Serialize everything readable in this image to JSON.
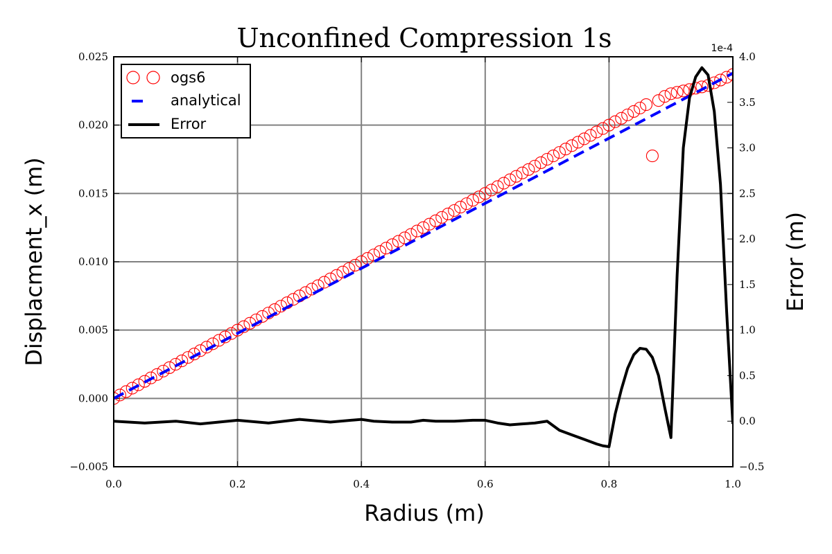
{
  "chart_data": {
    "type": "line",
    "title": "Unconfined Compression 1s",
    "xlabel": "Radius (m)",
    "ylabel": "Displacment_x (m)",
    "y2label": "Error (m)",
    "xlim": [
      0.0,
      1.0
    ],
    "ylim": [
      -0.005,
      0.025
    ],
    "y2lim": [
      -0.5,
      4.0
    ],
    "y2_offset_label": "1e-4",
    "x_ticks": [
      "0.0",
      "0.2",
      "0.4",
      "0.6",
      "0.8",
      "1.0"
    ],
    "y_ticks": [
      "−0.005",
      "0.000",
      "0.005",
      "0.010",
      "0.015",
      "0.020",
      "0.025"
    ],
    "y2_ticks": [
      "−0.5",
      "0.0",
      "0.5",
      "1.0",
      "1.5",
      "2.0",
      "2.5",
      "3.0",
      "3.5",
      "4.0"
    ],
    "grid": true,
    "legend": {
      "position": "top-left",
      "entries": [
        {
          "name": "ogs6",
          "style": "circle",
          "color": "#ff0000"
        },
        {
          "name": "analytical",
          "style": "dashed",
          "color": "#0000ff"
        },
        {
          "name": "Error",
          "style": "solid",
          "color": "#000000"
        }
      ]
    },
    "series": [
      {
        "name": "ogs6",
        "axis": "left",
        "marker": "circle",
        "color": "#ff0000",
        "x": [
          0.0,
          0.01,
          0.02,
          0.03,
          0.04,
          0.05,
          0.06,
          0.07,
          0.08,
          0.09,
          0.1,
          0.11,
          0.12,
          0.13,
          0.14,
          0.15,
          0.16,
          0.17,
          0.18,
          0.19,
          0.2,
          0.21,
          0.22,
          0.23,
          0.24,
          0.25,
          0.26,
          0.27,
          0.28,
          0.29,
          0.3,
          0.31,
          0.32,
          0.33,
          0.34,
          0.35,
          0.36,
          0.37,
          0.38,
          0.39,
          0.4,
          0.41,
          0.42,
          0.43,
          0.44,
          0.45,
          0.46,
          0.47,
          0.48,
          0.49,
          0.5,
          0.51,
          0.52,
          0.53,
          0.54,
          0.55,
          0.56,
          0.57,
          0.58,
          0.59,
          0.6,
          0.61,
          0.62,
          0.63,
          0.64,
          0.65,
          0.66,
          0.67,
          0.68,
          0.69,
          0.7,
          0.71,
          0.72,
          0.73,
          0.74,
          0.75,
          0.76,
          0.77,
          0.78,
          0.79,
          0.8,
          0.81,
          0.82,
          0.83,
          0.84,
          0.85,
          0.86,
          0.87,
          0.88,
          0.89,
          0.9,
          0.91,
          0.92,
          0.93,
          0.94,
          0.95,
          0.96,
          0.97,
          0.98,
          0.99,
          1.0
        ],
        "y": [
          0.0,
          0.00025,
          0.0005,
          0.00075,
          0.001,
          0.00125,
          0.0015,
          0.00175,
          0.002,
          0.00225,
          0.0025,
          0.00275,
          0.003,
          0.00325,
          0.0035,
          0.00375,
          0.004,
          0.00425,
          0.0045,
          0.00475,
          0.005,
          0.00525,
          0.0055,
          0.00575,
          0.006,
          0.00625,
          0.0065,
          0.00675,
          0.007,
          0.00725,
          0.0075,
          0.00775,
          0.008,
          0.00825,
          0.0085,
          0.00875,
          0.009,
          0.00925,
          0.0095,
          0.00975,
          0.01,
          0.01025,
          0.0105,
          0.01075,
          0.011,
          0.01125,
          0.0115,
          0.01175,
          0.012,
          0.01225,
          0.0125,
          0.01275,
          0.013,
          0.01325,
          0.0135,
          0.01375,
          0.014,
          0.01425,
          0.0145,
          0.01475,
          0.015,
          0.01525,
          0.0155,
          0.01575,
          0.016,
          0.01625,
          0.0165,
          0.01675,
          0.017,
          0.01725,
          0.0175,
          0.01775,
          0.018,
          0.01825,
          0.0185,
          0.01875,
          0.019,
          0.01925,
          0.0195,
          0.01975,
          0.02,
          0.02025,
          0.0205,
          0.02075,
          0.021,
          0.02125,
          0.0215,
          0.01775,
          0.0218,
          0.0221,
          0.0223,
          0.0224,
          0.0225,
          0.0226,
          0.0227,
          0.0228,
          0.0229,
          0.0231,
          0.0233,
          0.0235,
          0.0237
        ]
      },
      {
        "name": "analytical",
        "axis": "left",
        "style": "dashed",
        "color": "#0000ff",
        "x": [
          0.0,
          1.0
        ],
        "y": [
          0.0,
          0.0238
        ]
      },
      {
        "name": "Error",
        "axis": "right",
        "style": "solid",
        "color": "#000000",
        "x": [
          0.0,
          0.05,
          0.1,
          0.14,
          0.2,
          0.25,
          0.3,
          0.35,
          0.4,
          0.42,
          0.45,
          0.48,
          0.5,
          0.52,
          0.55,
          0.58,
          0.6,
          0.62,
          0.64,
          0.66,
          0.68,
          0.7,
          0.72,
          0.74,
          0.76,
          0.78,
          0.79,
          0.8,
          0.81,
          0.82,
          0.83,
          0.84,
          0.85,
          0.86,
          0.87,
          0.88,
          0.89,
          0.9,
          0.91,
          0.92,
          0.93,
          0.94,
          0.95,
          0.96,
          0.97,
          0.98,
          0.99,
          1.0
        ],
        "y": [
          0.0,
          -0.02,
          0.0,
          -0.03,
          0.01,
          -0.02,
          0.02,
          -0.01,
          0.02,
          0.0,
          -0.01,
          -0.01,
          0.01,
          0.0,
          0.0,
          0.01,
          0.01,
          -0.02,
          -0.04,
          -0.03,
          -0.02,
          0.0,
          -0.1,
          -0.15,
          -0.2,
          -0.25,
          -0.27,
          -0.28,
          0.08,
          0.35,
          0.58,
          0.73,
          0.8,
          0.79,
          0.7,
          0.5,
          0.15,
          -0.18,
          1.6,
          3.0,
          3.55,
          3.78,
          3.88,
          3.8,
          3.4,
          2.6,
          1.2,
          -0.03
        ]
      }
    ]
  }
}
